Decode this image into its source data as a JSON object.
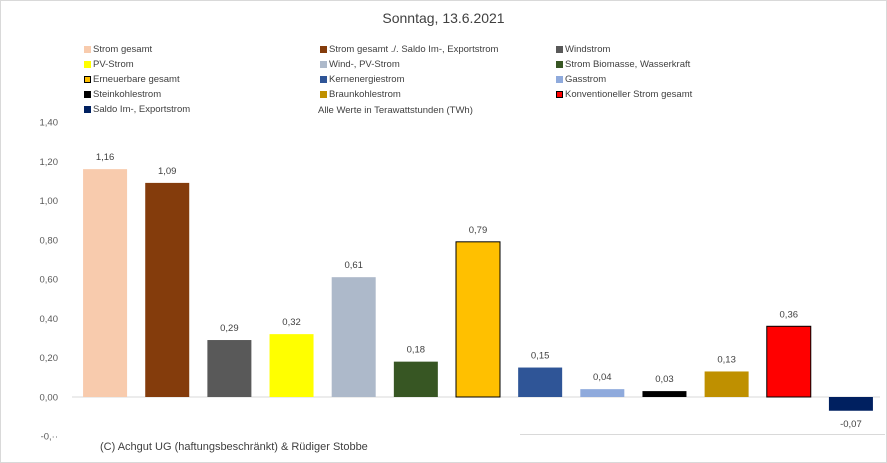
{
  "chart_data": {
    "type": "bar",
    "title": "Sonntag, 13.6.2021",
    "subtitle": "Alle Werte in Terawattstunden (TWh)",
    "ylim": [
      -0.2,
      1.4
    ],
    "y_ticks": [
      1.4,
      1.2,
      1.0,
      0.8,
      0.6,
      0.4,
      0.2,
      0.0
    ],
    "y_tick_labels": [
      "1,40",
      "1,20",
      "1,00",
      "0,80",
      "0,60",
      "0,40",
      "0,20",
      "0,00"
    ],
    "bottom_tick_label": "-0,··",
    "grid": false,
    "legend_placement": "top",
    "series": [
      {
        "name": "Strom gesamt",
        "value": 1.16,
        "label": "1,16",
        "color": "#f8cbad",
        "outline": false
      },
      {
        "name": "Strom gesamt ./. Saldo Im-, Exportstrom",
        "value": 1.09,
        "label": "1,09",
        "color": "#843c0c",
        "outline": false
      },
      {
        "name": "Windstrom",
        "value": 0.29,
        "label": "0,29",
        "color": "#595959",
        "outline": false
      },
      {
        "name": "PV-Strom",
        "value": 0.32,
        "label": "0,32",
        "color": "#ffff00",
        "outline": false
      },
      {
        "name": "Wind-, PV-Strom",
        "value": 0.61,
        "label": "0,61",
        "color": "#adb9ca",
        "outline": false
      },
      {
        "name": "Strom Biomasse, Wasserkraft",
        "value": 0.18,
        "label": "0,18",
        "color": "#375623",
        "outline": false
      },
      {
        "name": "Erneuerbare gesamt",
        "value": 0.79,
        "label": "0,79",
        "color": "#ffc000",
        "outline": true
      },
      {
        "name": "Kernenergiestrom",
        "value": 0.15,
        "label": "0,15",
        "color": "#2f5597",
        "outline": false
      },
      {
        "name": "Gasstrom",
        "value": 0.04,
        "label": "0,04",
        "color": "#8faadc",
        "outline": false
      },
      {
        "name": "Steinkohlestrom",
        "value": 0.03,
        "label": "0,03",
        "color": "#000000",
        "outline": false
      },
      {
        "name": "Braunkohlestrom",
        "value": 0.13,
        "label": "0,13",
        "color": "#bf9000",
        "outline": false
      },
      {
        "name": "Konventioneller Strom gesamt",
        "value": 0.36,
        "label": "0,36",
        "color": "#ff0000",
        "outline": true
      },
      {
        "name": "Saldo Im-, Exportstrom",
        "value": -0.07,
        "label": "-0,07",
        "color": "#002060",
        "outline": false
      }
    ]
  },
  "footer": {
    "copyright": "(C) Achgut UG (haftungsbeschränkt) & Rüdiger Stobbe"
  }
}
